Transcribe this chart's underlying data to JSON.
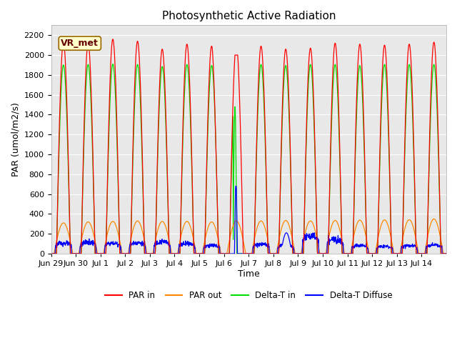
{
  "title": "Photosynthetic Active Radiation",
  "ylabel": "PAR (umol/m2/s)",
  "xlabel": "Time",
  "ylim": [
    0,
    2300
  ],
  "yticks": [
    0,
    200,
    400,
    600,
    800,
    1000,
    1200,
    1400,
    1600,
    1800,
    2000,
    2200
  ],
  "legend_labels": [
    "PAR in",
    "PAR out",
    "Delta-T in",
    "Delta-T Diffuse"
  ],
  "legend_colors": [
    "#ff0000",
    "#ff8800",
    "#00dd00",
    "#0000ff"
  ],
  "annotation_text": "VR_met",
  "annotation_bg": "#ffffcc",
  "annotation_border": "#996600",
  "fig_bg": "#ffffff",
  "plot_bg": "#e8e8e8",
  "grid_color": "#ffffff",
  "title_fontsize": 11,
  "axis_label_fontsize": 9,
  "tick_fontsize": 8,
  "tick_labels": [
    "Jun 29",
    "Jun 30",
    "Jul 1",
    "Jul 2",
    "Jul 3",
    "Jul 4",
    "Jul 5",
    "Jul 6",
    "Jul 7",
    "Jul 8",
    "Jul 9",
    "Jul 10",
    "Jul 11",
    "Jul 12",
    "Jul 13",
    "Jul 14"
  ],
  "n_days": 16
}
